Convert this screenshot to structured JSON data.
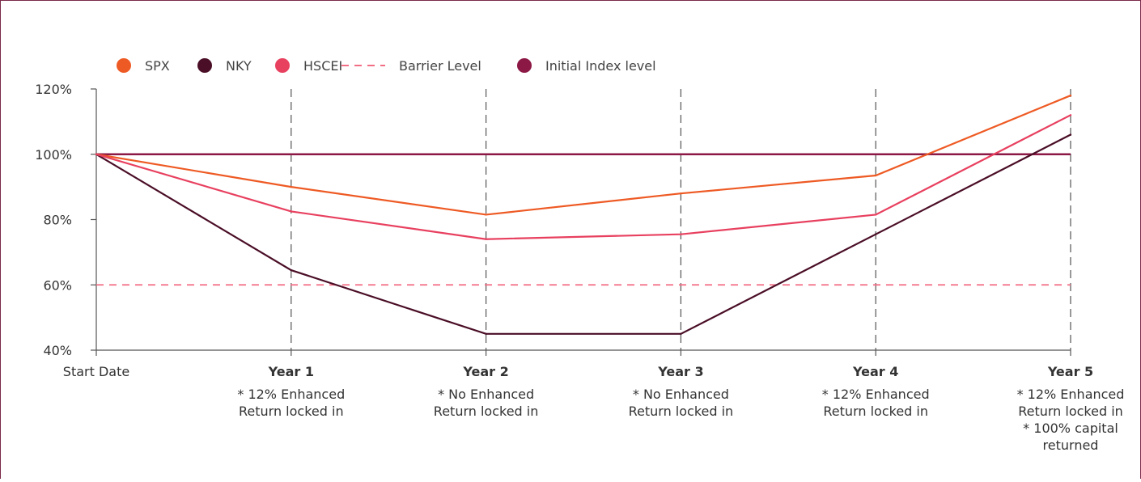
{
  "chart_data": {
    "type": "line",
    "title": "",
    "xlabel": "",
    "ylabel": "",
    "categories": [
      "Start Date",
      "Year 1",
      "Year 2",
      "Year 3",
      "Year 4",
      "Year 5"
    ],
    "category_bold": [
      false,
      true,
      true,
      true,
      true,
      true
    ],
    "category_notes": [
      [],
      [
        "* 12% Enhanced",
        "Return locked in"
      ],
      [
        "* No Enhanced",
        "Return locked in"
      ],
      [
        "* No Enhanced",
        "Return locked in"
      ],
      [
        "* 12% Enhanced",
        "Return locked in"
      ],
      [
        "* 12% Enhanced",
        "Return locked in",
        "* 100% capital",
        "returned"
      ]
    ],
    "ylim": [
      40,
      120
    ],
    "yticks": [
      40,
      60,
      80,
      100,
      120
    ],
    "ytick_labels": [
      "40%",
      "60%",
      "80%",
      "100%",
      "120%"
    ],
    "series": [
      {
        "name": "SPX",
        "color": "#ee5a24",
        "values": [
          100,
          90,
          81.5,
          88,
          93.5,
          118
        ]
      },
      {
        "name": "NKY",
        "color": "#4a0e26",
        "values": [
          100,
          64.5,
          45,
          45,
          75.5,
          106
        ]
      },
      {
        "name": "HSCEI",
        "color": "#e8405f",
        "values": [
          100,
          82.5,
          74,
          75.5,
          81.5,
          112
        ]
      }
    ],
    "reference_lines": [
      {
        "name": "Barrier Level",
        "value": 60,
        "color": "#f26e85",
        "style": "dashed"
      },
      {
        "name": "Initial Index level",
        "value": 100,
        "color": "#8c1845",
        "style": "solid"
      }
    ],
    "vertical_gridlines": "dashed at Year 1 – Year 5",
    "legend_position": "top-left",
    "legend": [
      {
        "name": "SPX",
        "marker": "circle",
        "color": "#ee5a24"
      },
      {
        "name": "NKY",
        "marker": "circle",
        "color": "#4a0e26"
      },
      {
        "name": "HSCEI",
        "marker": "circle",
        "color": "#e8405f"
      },
      {
        "name": "Barrier Level",
        "marker": "dashed-line",
        "color": "#f26e85"
      },
      {
        "name": "Initial Index level",
        "marker": "circle",
        "color": "#8c1845"
      }
    ]
  }
}
